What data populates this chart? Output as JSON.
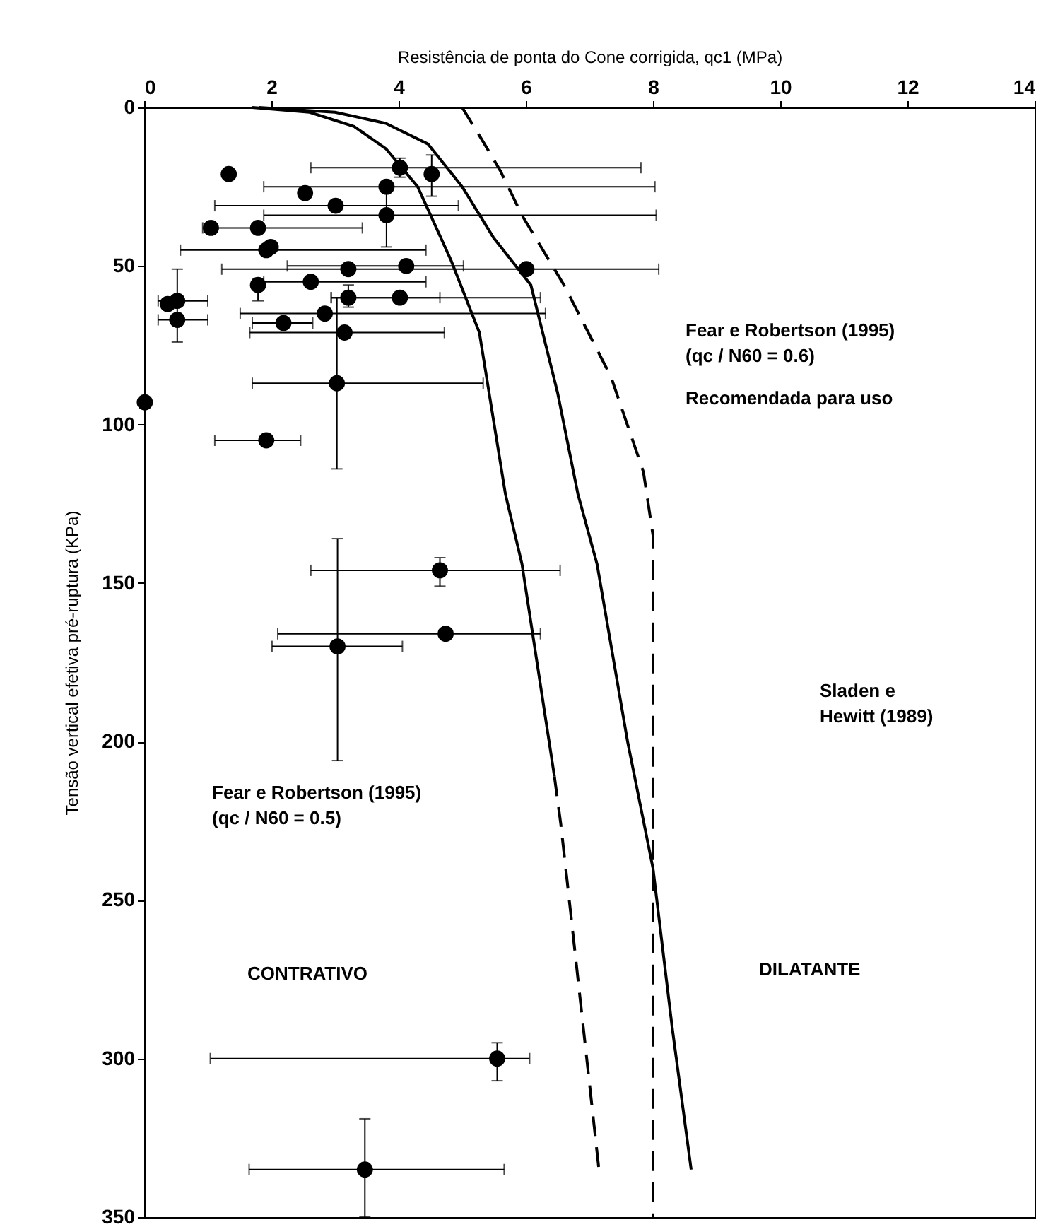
{
  "chart_data": {
    "type": "scatter",
    "xlabel": "Resistência de ponta do Cone corrigida, qc1 (MPa)",
    "ylabel": "Tensão vertical efetiva pré-ruptura (KPa)",
    "xlim": [
      0,
      14
    ],
    "xticks": [
      0,
      2,
      4,
      6,
      8,
      10,
      12,
      14
    ],
    "ylim": [
      350,
      0
    ],
    "yticks": [
      0,
      50,
      100,
      150,
      200,
      250,
      300,
      350
    ],
    "grid": false,
    "series": [
      {
        "type": "scatter",
        "color": "#000000",
        "marker": "circle",
        "x": [
          1.33,
          4.02,
          4.52,
          3.81,
          2.53,
          3.01,
          3.81,
          1.05,
          1.79,
          1.92,
          1.99,
          3.21,
          4.12,
          6.01,
          1.79,
          2.62,
          3.21,
          4.02,
          0.37,
          0.52,
          0.52,
          2.84,
          2.19,
          3.15,
          3.03,
          0.01,
          1.92,
          4.65,
          4.74,
          3.04,
          5.55,
          3.47
        ],
        "values": [
          21,
          19,
          21,
          25,
          27,
          31,
          34,
          38,
          38,
          45,
          44,
          51,
          50,
          51,
          56,
          55,
          60,
          60,
          62,
          61,
          67,
          65,
          68,
          71,
          87,
          93,
          105,
          146,
          166,
          170,
          300,
          335
        ],
        "errors": [
          null,
          [
            16,
            22
          ],
          [
            15,
            28
          ],
          null,
          null,
          null,
          [
            26,
            44
          ],
          null,
          null,
          null,
          null,
          null,
          null,
          null,
          [
            54,
            61
          ],
          null,
          [
            56,
            63
          ],
          null,
          null,
          null,
          [
            51,
            74
          ],
          null,
          null,
          null,
          [
            60,
            114
          ],
          null,
          null,
          [
            142,
            151
          ],
          null,
          [
            136,
            206
          ],
          [
            295,
            307
          ],
          [
            319,
            350
          ]
        ],
        "xerrors": [
          null,
          [
            2.62,
            7.81
          ],
          null,
          [
            1.88,
            8.03
          ],
          null,
          [
            1.11,
            4.94
          ],
          [
            1.88,
            8.05
          ],
          null,
          [
            0.92,
            3.43
          ],
          [
            0.57,
            4.43
          ],
          null,
          null,
          [
            2.25,
            5.02
          ],
          [
            1.22,
            8.09
          ],
          null,
          [
            1.88,
            4.43
          ],
          [
            2.94,
            4.65
          ],
          [
            2.94,
            6.23
          ],
          null,
          [
            0.22,
            1.0
          ],
          [
            0.22,
            1.0
          ],
          [
            1.51,
            6.31
          ],
          [
            1.7,
            2.65
          ],
          [
            1.66,
            4.72
          ],
          [
            1.7,
            5.33
          ],
          null,
          [
            1.11,
            2.46
          ],
          [
            2.62,
            6.54
          ],
          [
            2.1,
            6.23
          ],
          [
            2.01,
            4.06
          ],
          [
            1.04,
            6.06
          ],
          [
            1.65,
            5.66
          ]
        ]
      },
      {
        "type": "line",
        "color": "#000000",
        "line_style": "solid",
        "x": [
          1.7,
          2.6,
          3.3,
          3.8,
          4.3,
          4.82,
          5.27,
          5.68,
          5.94,
          6.45
        ],
        "values": [
          0,
          1.5,
          6,
          13,
          25,
          48,
          71,
          122,
          144,
          211
        ]
      },
      {
        "type": "line",
        "color": "#000000",
        "line_style": "dashed",
        "x": [
          6.45,
          6.55,
          6.7,
          7.15
        ],
        "values": [
          211,
          226,
          253,
          335
        ]
      },
      {
        "type": "line",
        "color": "#000000",
        "line_style": "solid",
        "x": [
          1.8,
          3.0,
          3.8,
          4.46,
          5.0,
          5.49,
          6.08,
          6.5,
          6.82,
          7.12,
          7.6,
          8.0,
          8.3,
          8.6
        ],
        "values": [
          0,
          1.5,
          5,
          11.5,
          25,
          41,
          56,
          90,
          122,
          144,
          200,
          240,
          290,
          335
        ]
      },
      {
        "type": "line",
        "color": "#000000",
        "line_style": "dashed",
        "x": [
          5.0,
          5.35,
          5.6,
          5.94,
          6.6,
          7.34,
          7.85,
          8.0,
          8.0
        ],
        "values": [
          0,
          11.5,
          20,
          34,
          56,
          85,
          115,
          135,
          350
        ]
      }
    ],
    "annotations": [
      "Fear e Robertson (1995)\n(qc / N60 = 0.6)",
      "Recomendada para uso",
      "Sladen e\nHewitt (1989)",
      "Fear e Robertson (1995)\n(qc / N60 = 0.5)",
      "CONTRATIVO",
      "DILATANTE"
    ]
  }
}
